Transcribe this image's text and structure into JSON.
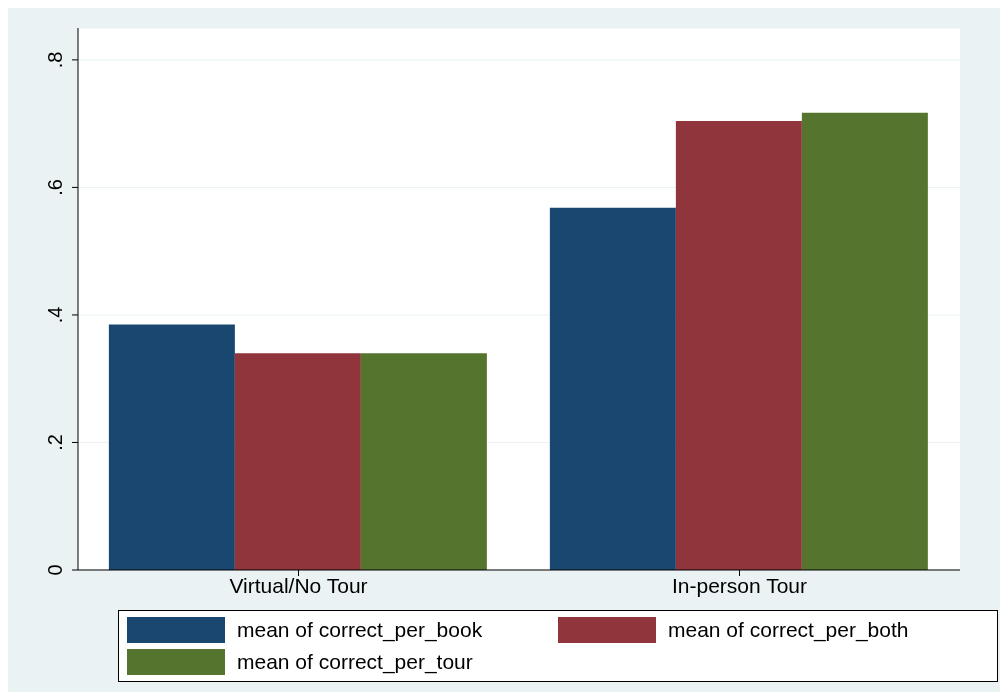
{
  "chart_data": {
    "type": "bar",
    "categories": [
      "Virtual/No Tour",
      "In-person Tour"
    ],
    "series": [
      {
        "name": "mean of correct_per_book",
        "color": "#1a476f",
        "values": [
          0.385,
          0.568
        ]
      },
      {
        "name": "mean of correct_per_both",
        "color": "#90353b",
        "values": [
          0.34,
          0.704
        ]
      },
      {
        "name": "mean of correct_per_tour",
        "color": "#55752f",
        "values": [
          0.34,
          0.717
        ]
      }
    ],
    "ylim": [
      0,
      0.85
    ],
    "yticks": [
      0,
      {
        "value": 0.2,
        "label": ".2"
      },
      {
        "value": 0.4,
        "label": ".4"
      },
      {
        "value": 0.6,
        "label": ".6"
      },
      {
        "value": 0.8,
        "label": ".8"
      }
    ],
    "grid": "y",
    "legend": "bottom"
  }
}
